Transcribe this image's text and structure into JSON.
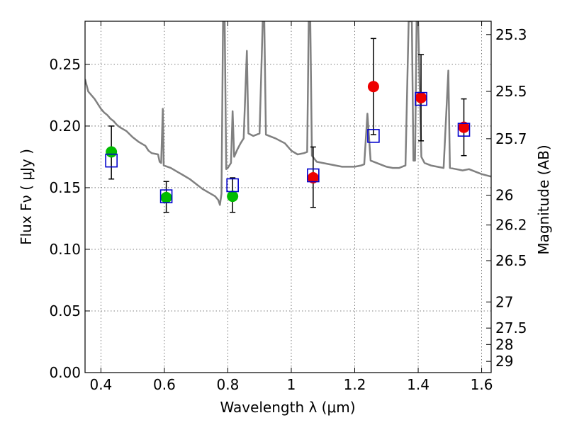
{
  "chart_data": {
    "type": "scatter",
    "xlabel": "Wavelength  λ (μm)",
    "ylabel": "Flux  Fν  ( μJy )",
    "ylabel_right": "Magnitude (AB)",
    "xlim": [
      0.35,
      1.63
    ],
    "ylim": [
      0.0,
      0.285
    ],
    "grid": true,
    "x_ticks": [
      0.4,
      0.6,
      0.8,
      1.0,
      1.2,
      1.4,
      1.6
    ],
    "x_tick_labels": [
      "0.4",
      "0.6",
      "0.8",
      "1",
      "1.2",
      "1.4",
      "1.6"
    ],
    "y_ticks": [
      0.0,
      0.05,
      0.1,
      0.15,
      0.2,
      0.25
    ],
    "y_tick_labels": [
      "0.00",
      "0.05",
      "0.10",
      "0.15",
      "0.20",
      "0.25"
    ],
    "right_ticks": [
      {
        "label": "25.3",
        "flux": 0.2742
      },
      {
        "label": "25.5",
        "flux": 0.2281
      },
      {
        "label": "25.7",
        "flux": 0.1897
      },
      {
        "label": "26",
        "flux": 0.1439
      },
      {
        "label": "26.2",
        "flux": 0.1197
      },
      {
        "label": "26.5",
        "flux": 0.0908
      },
      {
        "label": "27",
        "flux": 0.0573
      },
      {
        "label": "27.5",
        "flux": 0.0361
      },
      {
        "label": "28",
        "flux": 0.0228
      },
      {
        "label": "29",
        "flux": 0.0091
      }
    ],
    "colors": {
      "model": "#808080",
      "green": "#00bb00",
      "red": "#ee0000",
      "model_box": "#0000cc",
      "errorbar": "#000000",
      "grid": "#555555"
    },
    "model_spectrum": [
      [
        0.35,
        0.238
      ],
      [
        0.36,
        0.228
      ],
      [
        0.37,
        0.225
      ],
      [
        0.38,
        0.222
      ],
      [
        0.39,
        0.218
      ],
      [
        0.4,
        0.214
      ],
      [
        0.41,
        0.211
      ],
      [
        0.42,
        0.209
      ],
      [
        0.43,
        0.206
      ],
      [
        0.44,
        0.204
      ],
      [
        0.45,
        0.201
      ],
      [
        0.46,
        0.199
      ],
      [
        0.48,
        0.196
      ],
      [
        0.5,
        0.191
      ],
      [
        0.52,
        0.187
      ],
      [
        0.54,
        0.184
      ],
      [
        0.55,
        0.18
      ],
      [
        0.56,
        0.178
      ],
      [
        0.58,
        0.177
      ],
      [
        0.585,
        0.171
      ],
      [
        0.59,
        0.17
      ],
      [
        0.595,
        0.214
      ],
      [
        0.598,
        0.168
      ],
      [
        0.62,
        0.166
      ],
      [
        0.64,
        0.163
      ],
      [
        0.66,
        0.16
      ],
      [
        0.68,
        0.157
      ],
      [
        0.7,
        0.153
      ],
      [
        0.72,
        0.149
      ],
      [
        0.74,
        0.146
      ],
      [
        0.76,
        0.143
      ],
      [
        0.77,
        0.14
      ],
      [
        0.775,
        0.136
      ],
      [
        0.78,
        0.145
      ],
      [
        0.785,
        0.285
      ],
      [
        0.79,
        0.285
      ],
      [
        0.795,
        0.165
      ],
      [
        0.8,
        0.166
      ],
      [
        0.81,
        0.17
      ],
      [
        0.815,
        0.212
      ],
      [
        0.82,
        0.175
      ],
      [
        0.83,
        0.181
      ],
      [
        0.84,
        0.186
      ],
      [
        0.85,
        0.19
      ],
      [
        0.86,
        0.261
      ],
      [
        0.865,
        0.194
      ],
      [
        0.88,
        0.192
      ],
      [
        0.9,
        0.194
      ],
      [
        0.91,
        0.285
      ],
      [
        0.915,
        0.285
      ],
      [
        0.92,
        0.193
      ],
      [
        0.95,
        0.19
      ],
      [
        0.98,
        0.186
      ],
      [
        1.0,
        0.18
      ],
      [
        1.02,
        0.177
      ],
      [
        1.04,
        0.178
      ],
      [
        1.05,
        0.179
      ],
      [
        1.055,
        0.285
      ],
      [
        1.06,
        0.285
      ],
      [
        1.065,
        0.176
      ],
      [
        1.08,
        0.171
      ],
      [
        1.1,
        0.17
      ],
      [
        1.12,
        0.169
      ],
      [
        1.14,
        0.168
      ],
      [
        1.16,
        0.167
      ],
      [
        1.18,
        0.167
      ],
      [
        1.2,
        0.167
      ],
      [
        1.22,
        0.168
      ],
      [
        1.23,
        0.169
      ],
      [
        1.24,
        0.21
      ],
      [
        1.25,
        0.172
      ],
      [
        1.28,
        0.169
      ],
      [
        1.3,
        0.167
      ],
      [
        1.32,
        0.166
      ],
      [
        1.34,
        0.166
      ],
      [
        1.36,
        0.168
      ],
      [
        1.37,
        0.285
      ],
      [
        1.38,
        0.285
      ],
      [
        1.385,
        0.172
      ],
      [
        1.39,
        0.172
      ],
      [
        1.395,
        0.285
      ],
      [
        1.4,
        0.285
      ],
      [
        1.41,
        0.175
      ],
      [
        1.42,
        0.17
      ],
      [
        1.44,
        0.168
      ],
      [
        1.46,
        0.167
      ],
      [
        1.48,
        0.166
      ],
      [
        1.495,
        0.245
      ],
      [
        1.5,
        0.166
      ],
      [
        1.52,
        0.165
      ],
      [
        1.54,
        0.164
      ],
      [
        1.56,
        0.165
      ],
      [
        1.58,
        0.163
      ],
      [
        1.6,
        0.161
      ],
      [
        1.63,
        0.159
      ]
    ],
    "model_boxes": [
      {
        "x": 0.433,
        "y": 0.172
      },
      {
        "x": 0.606,
        "y": 0.143
      },
      {
        "x": 0.815,
        "y": 0.152
      },
      {
        "x": 1.069,
        "y": 0.16
      },
      {
        "x": 1.259,
        "y": 0.192
      },
      {
        "x": 1.409,
        "y": 0.222
      },
      {
        "x": 1.544,
        "y": 0.197
      }
    ],
    "series": [
      {
        "name": "green",
        "points": [
          {
            "x": 0.433,
            "y": 0.179,
            "yerr_low": 0.157,
            "yerr_high": 0.2
          },
          {
            "x": 0.606,
            "y": 0.142,
            "yerr_low": 0.13,
            "yerr_high": 0.155
          },
          {
            "x": 0.815,
            "y": 0.143,
            "yerr_low": 0.13,
            "yerr_high": 0.158
          }
        ]
      },
      {
        "name": "red",
        "points": [
          {
            "x": 1.069,
            "y": 0.158,
            "yerr_low": 0.134,
            "yerr_high": 0.183
          },
          {
            "x": 1.259,
            "y": 0.232,
            "yerr_low": 0.193,
            "yerr_high": 0.271
          },
          {
            "x": 1.409,
            "y": 0.223,
            "yerr_low": 0.188,
            "yerr_high": 0.258
          },
          {
            "x": 1.544,
            "y": 0.199,
            "yerr_low": 0.176,
            "yerr_high": 0.222
          }
        ]
      }
    ]
  }
}
